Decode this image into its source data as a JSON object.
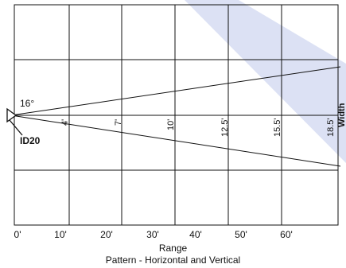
{
  "diagram": {
    "angle_label": "16°",
    "device_label": "ID20",
    "width_label": "Width",
    "range_ticks": [
      "0'",
      "10'",
      "20'",
      "30'",
      "40'",
      "50'",
      "60'"
    ],
    "width_values": [
      "4'",
      "7'",
      "10'",
      "12.5'",
      "15.5'",
      "18.5'"
    ],
    "accent_color": "#d6dcf2"
  },
  "captions": {
    "axis_title": "Range",
    "pattern": "Pattern - Horizontal and Vertical"
  }
}
